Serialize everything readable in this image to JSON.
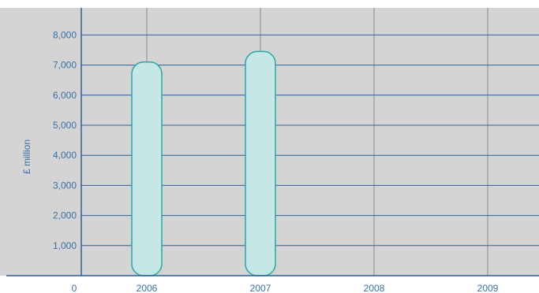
{
  "chart_data": {
    "type": "bar",
    "categories": [
      "2006",
      "2007",
      "2008",
      "2009"
    ],
    "values": [
      7100,
      7450,
      null,
      null
    ],
    "ylabel": "£ million",
    "xlabel": "",
    "origin_label": "0",
    "ylim": [
      0,
      8900
    ],
    "yticks": [
      1000,
      2000,
      3000,
      4000,
      5000,
      6000,
      7000,
      8000
    ],
    "ytick_labels": [
      "1,000",
      "2,000",
      "3,000",
      "4,000",
      "5,000",
      "6,000",
      "7,000",
      "8,000"
    ],
    "grid": true,
    "colors": {
      "plot_background": "#d4d4d4",
      "bar_fill": "#c5e8e6",
      "bar_stroke": "#2aa6a2",
      "horizontal_grid": "#2f5f9a",
      "vertical_grid": "#8a8a8a",
      "axis": "#2f5f9a",
      "text": "#3a6fa8"
    }
  }
}
